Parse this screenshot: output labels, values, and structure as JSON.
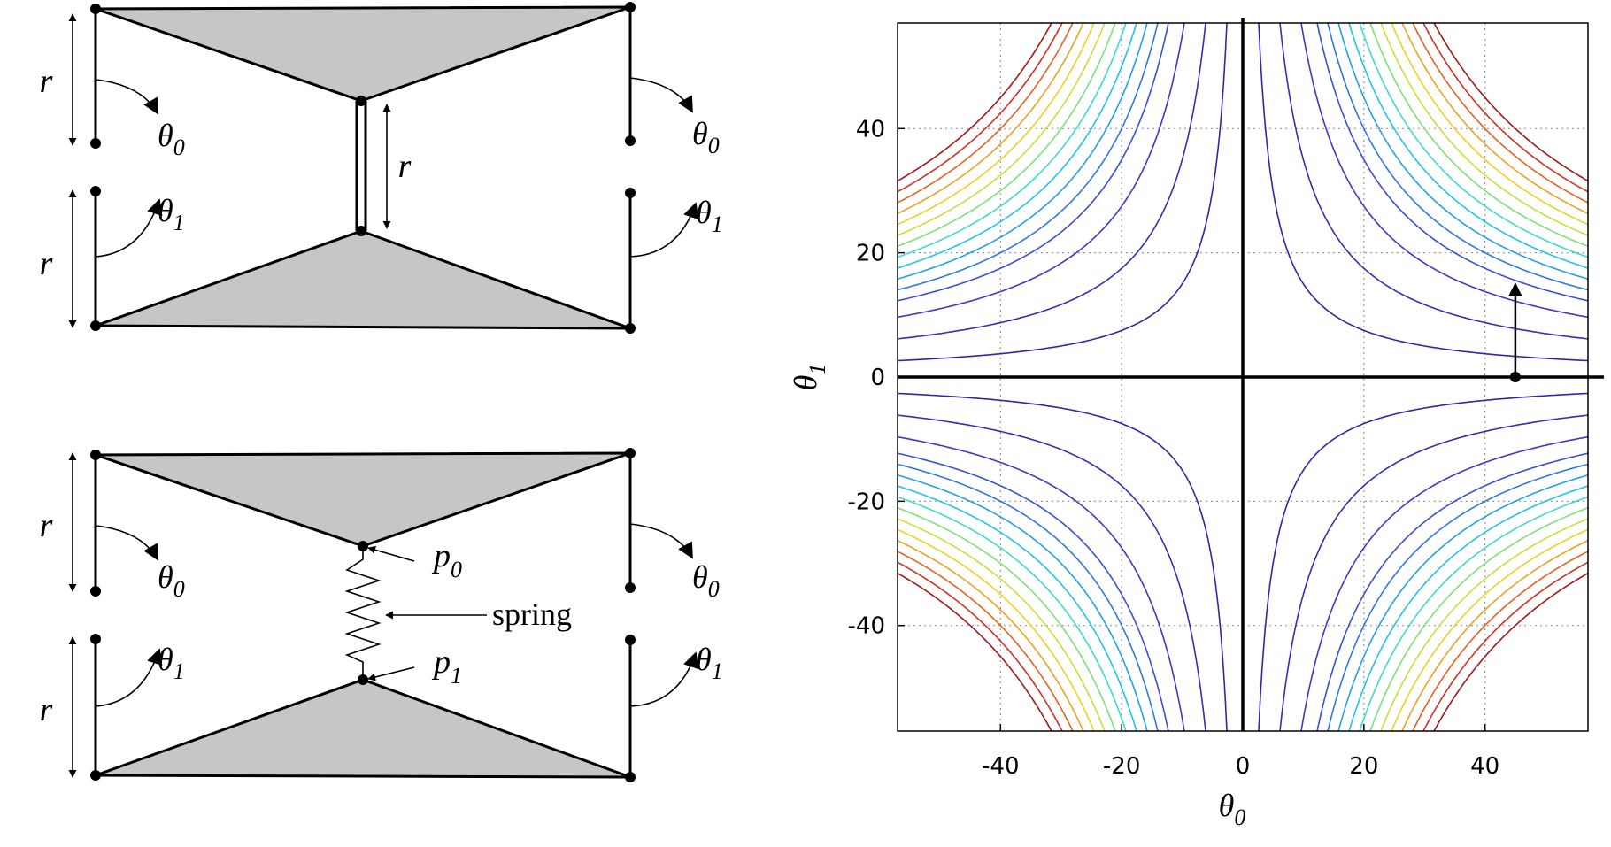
{
  "diagram": {
    "top": {
      "r_left": "r",
      "r_left_lower": "r",
      "r_center": "r",
      "theta0_left": "θ",
      "theta0_left_sub": "0",
      "theta0_right": "θ",
      "theta0_right_sub": "0",
      "theta1_left": "θ",
      "theta1_left_sub": "1",
      "theta1_right": "θ",
      "theta1_right_sub": "1"
    },
    "bottom": {
      "r_left": "r",
      "r_left_lower": "r",
      "theta0_left": "θ",
      "theta0_left_sub": "0",
      "theta0_right": "θ",
      "theta0_right_sub": "0",
      "theta1_left": "θ",
      "theta1_left_sub": "1",
      "theta1_right": "θ",
      "theta1_right_sub": "1",
      "p0": "p",
      "p0_sub": "0",
      "p1": "p",
      "p1_sub": "1",
      "spring": "spring"
    }
  },
  "chart_data": {
    "type": "contour",
    "xlabel": "θ",
    "xlabel_sub": "0",
    "ylabel": "θ",
    "ylabel_sub": "1",
    "xlim": [
      -57,
      57
    ],
    "ylim": [
      -57,
      57
    ],
    "x_ticks": [
      -40,
      -20,
      0,
      20,
      40
    ],
    "y_ticks": [
      -40,
      -20,
      0,
      20,
      40
    ],
    "x_tick_labels": [
      "-40",
      "-20",
      "0",
      "20",
      "40"
    ],
    "y_tick_labels": [
      "-40",
      "-20",
      "0",
      "20",
      "40"
    ],
    "grid": true,
    "grid_style": "dotted",
    "contour_function": "θ0·θ1 = level",
    "contour_levels": [
      150,
      350,
      550,
      700,
      800,
      900,
      1000,
      1100,
      1200,
      1300,
      1400,
      1500,
      1600,
      1700,
      1800
    ],
    "contour_colors": [
      "#2a2aa8",
      "#3030b8",
      "#3a3ac8",
      "#3b4fd8",
      "#2f78e0",
      "#22a0e8",
      "#1fc4e8",
      "#3ddcc8",
      "#7ee07a",
      "#c8e03c",
      "#f0d020",
      "#f0a020",
      "#e86020",
      "#d03020",
      "#a01818"
    ],
    "arrow": {
      "start": [
        45,
        0
      ],
      "end": [
        45,
        15
      ]
    },
    "marked_point": [
      45,
      0
    ]
  }
}
